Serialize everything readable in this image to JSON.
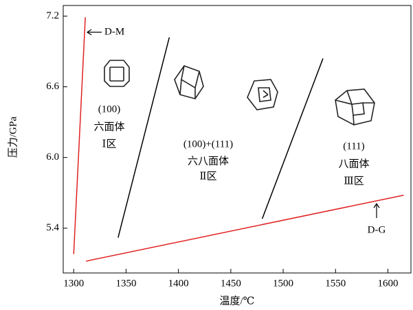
{
  "chart_data": {
    "type": "line",
    "xlabel": "温度/℃",
    "ylabel": "压力/GPa",
    "xlim": [
      1290,
      1622
    ],
    "ylim": [
      5.02,
      7.29
    ],
    "xticks": [
      1300,
      1350,
      1400,
      1450,
      1500,
      1550,
      1600
    ],
    "yticks": [
      7.2,
      6.6,
      {
        "value": 6,
        "label": "6.0"
      },
      5.4
    ],
    "series": [
      {
        "color": "#e02020",
        "x": [
          1300.0,
          1311.1
        ],
        "values": [
          5.18,
          7.19
        ]
      },
      {
        "color": "#e02020",
        "x": [
          1311.7,
          1615.1
        ],
        "values": [
          5.12,
          5.68
        ]
      },
      {
        "color": "#000000",
        "x": [
          1342.4,
          1391.3
        ],
        "values": [
          5.32,
          7.02
        ]
      },
      {
        "color": "#000000",
        "x": [
          1480,
          1538
        ],
        "values": [
          5.48,
          6.84
        ]
      }
    ],
    "annotations": [
      "D-M",
      "D-G",
      "(100)",
      "六面体",
      "Ⅰ区",
      "(100)+(111)",
      "六八面体",
      "Ⅱ区",
      "(111)",
      "八面体",
      "Ⅲ区"
    ]
  }
}
